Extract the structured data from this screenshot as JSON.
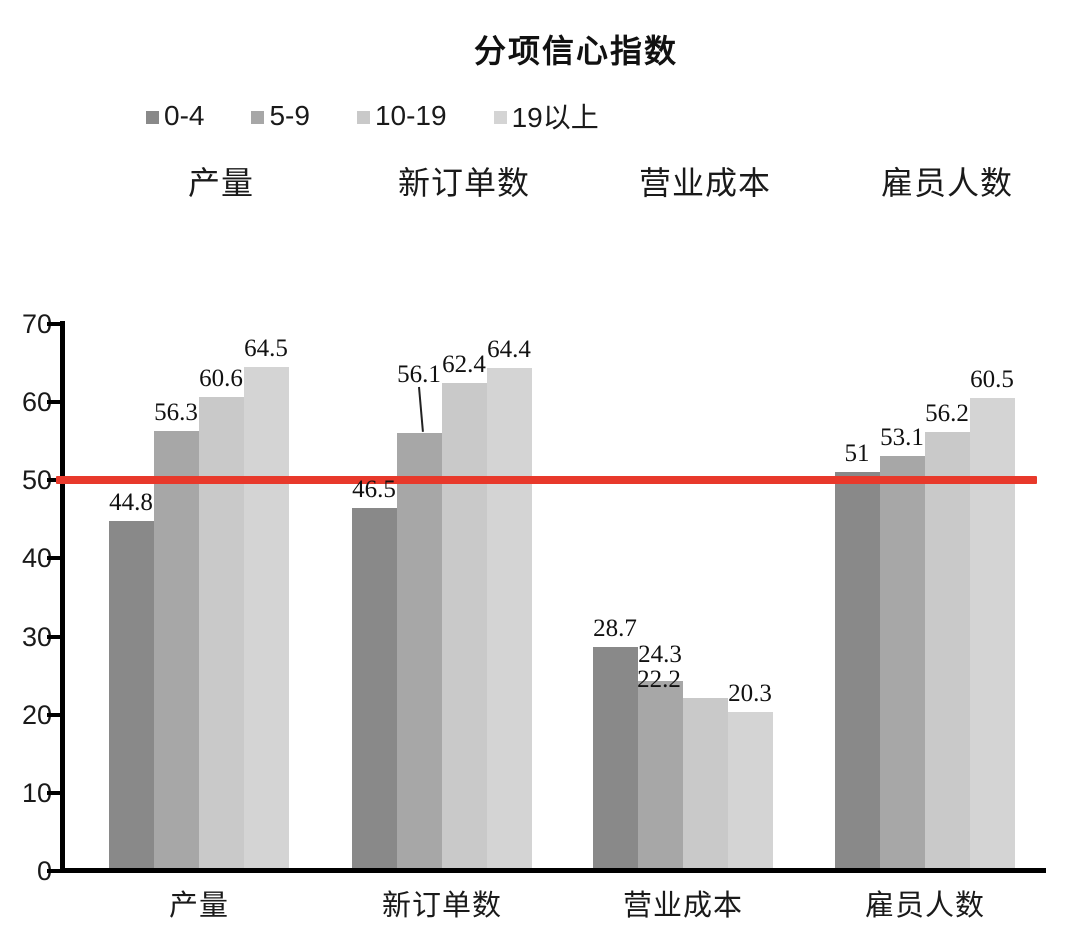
{
  "chart_data": {
    "type": "bar",
    "title": "分项信心指数",
    "categories": [
      "产量",
      "新订单数",
      "营业成本",
      "雇员人数"
    ],
    "top_category_labels": [
      "产量",
      "新订单数",
      "营业成本",
      "雇员人数"
    ],
    "series": [
      {
        "name": "0-4",
        "color": "#898989",
        "values": [
          44.8,
          46.5,
          28.7,
          51
        ]
      },
      {
        "name": "5-9",
        "color": "#a7a7a7",
        "values": [
          56.3,
          56.1,
          24.3,
          53.1
        ]
      },
      {
        "name": "10-19",
        "color": "#c9c9c9",
        "values": [
          60.6,
          62.4,
          22.2,
          56.2
        ]
      },
      {
        "name": "19以上",
        "color": "#d4d4d4",
        "values": [
          64.5,
          64.4,
          20.3,
          60.5
        ]
      }
    ],
    "value_labels": [
      [
        "44.8",
        "46.5",
        "28.7",
        "51"
      ],
      [
        "56.3",
        "56.1",
        "24.3",
        "53.1"
      ],
      [
        "60.6",
        "62.4",
        "22.2",
        "56.2"
      ],
      [
        "64.5",
        "64.4",
        "20.3",
        "60.5"
      ]
    ],
    "ylim": [
      0,
      70
    ],
    "yticks": [
      0,
      10,
      20,
      30,
      40,
      50,
      60,
      70
    ],
    "grid": false,
    "legend_position": "top",
    "reference_line": {
      "value": 50,
      "color": "#e8392b"
    },
    "axis_color": "#000000",
    "text_color": "#1a1a1a"
  }
}
